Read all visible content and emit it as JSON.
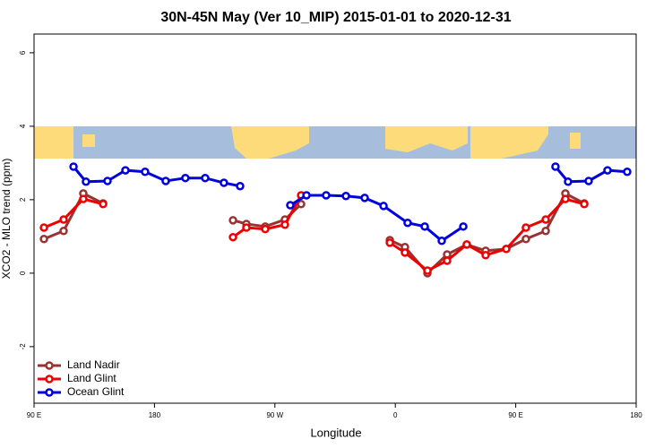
{
  "chart_data": {
    "type": "line",
    "title": "30N-45N May (Ver 10_MIP)   2015-01-01 to 2020-12-31",
    "x_label": "Longitude",
    "y_label": "XCO2 - MLO trend (ppm)",
    "xlim": [
      90,
      540
    ],
    "xticks": [
      {
        "value": 90,
        "label": "90 E"
      },
      {
        "value": 180,
        "label": "180"
      },
      {
        "value": 270,
        "label": "90 W"
      },
      {
        "value": 360,
        "label": "0"
      },
      {
        "value": 450,
        "label": "90 E"
      },
      {
        "value": 540,
        "label": "180"
      }
    ],
    "ylim": [
      -3.54,
      6.51
    ],
    "yticks": [
      -2,
      0,
      2,
      4,
      6
    ],
    "legend": "bottom-left",
    "series": [
      {
        "name": "Land Nadir",
        "color": "#993333",
        "x": [
          97.4,
          112.1,
          126.8,
          141.6,
          null,
          238.7,
          248.7,
          262.8,
          277.5,
          289.6,
          null,
          355.9,
          367.2,
          384.0,
          398.7,
          413.4,
          427.5,
          442.9,
          457.6,
          472.4,
          487.1,
          501.2
        ],
        "values": [
          0.93,
          1.15,
          2.17,
          1.9,
          null,
          1.44,
          1.34,
          1.27,
          1.46,
          1.88,
          null,
          0.9,
          0.71,
          0,
          0.51,
          0.78,
          0.61,
          0.66,
          0.93,
          1.15,
          2.17,
          1.9
        ]
      },
      {
        "name": "Land Glint",
        "color": "#ee0000",
        "x": [
          97.4,
          112.1,
          126.8,
          141.6,
          null,
          238.7,
          248.7,
          262.8,
          277.5,
          289.6,
          null,
          355.9,
          367.2,
          384.0,
          398.7,
          413.4,
          427.5,
          442.9,
          457.6,
          472.4,
          487.1,
          501.2
        ],
        "values": [
          1.24,
          1.46,
          2.02,
          1.88,
          null,
          0.98,
          1.24,
          1.2,
          1.32,
          2.12,
          null,
          0.83,
          0.56,
          0.07,
          0.34,
          0.78,
          0.49,
          0.66,
          1.24,
          1.46,
          2.02,
          1.88
        ]
      },
      {
        "name": "Ocean Glint",
        "color": "#0000dd",
        "x": [
          119.5,
          128.8,
          144.9,
          158.3,
          173.0,
          188.4,
          203.1,
          217.9,
          231.9,
          244.0,
          null,
          281.5,
          293.6,
          308.3,
          323.1,
          337.1,
          351.2,
          369.2,
          382.0,
          394.7,
          410.8,
          null,
          479.7,
          489.1,
          504.5,
          518.6,
          533.3
        ],
        "values": [
          2.9,
          2.49,
          2.51,
          2.8,
          2.76,
          2.51,
          2.59,
          2.59,
          2.46,
          2.37,
          null,
          1.85,
          2.12,
          2.12,
          2.1,
          2.05,
          1.83,
          1.37,
          1.27,
          0.88,
          1.27,
          null,
          2.9,
          2.49,
          2.51,
          2.8,
          2.76
        ]
      }
    ]
  }
}
